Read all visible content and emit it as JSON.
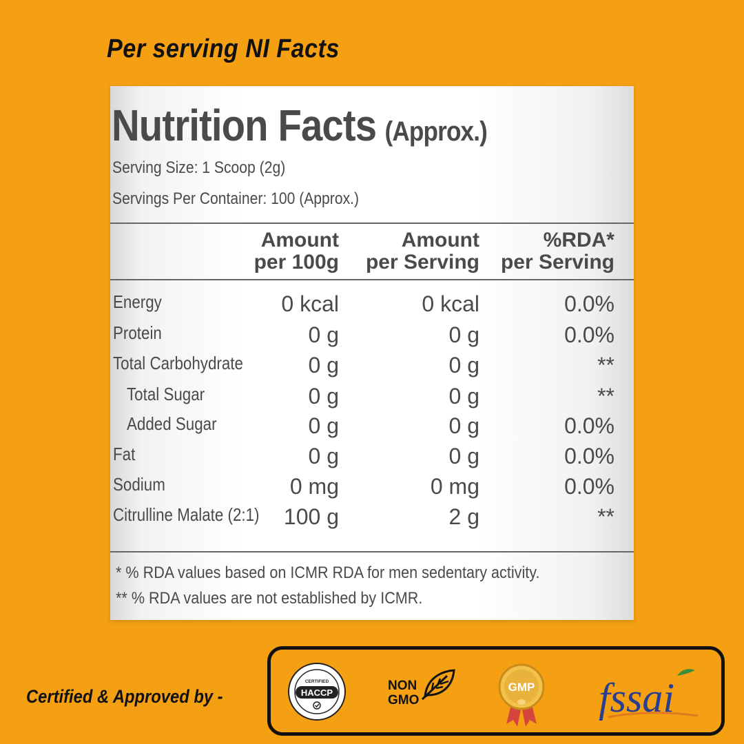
{
  "header": {
    "title": "Per serving NI Facts"
  },
  "label": {
    "title": "Nutrition Facts",
    "title_suffix": "(Approx.)",
    "serving_size": "Serving Size: 1 Scoop (2g)",
    "servings_per_container": "Servings Per Container: 100 (Approx.)",
    "columns": [
      {
        "line1": "Amount",
        "line2": "per 100g"
      },
      {
        "line1": "Amount",
        "line2": "per Serving"
      },
      {
        "line1": "%RDA*",
        "line2": "per Serving"
      }
    ],
    "rows": [
      {
        "name": "Energy",
        "per100g": "0 kcal",
        "perServing": "0 kcal",
        "rda": "0.0%"
      },
      {
        "name": "Protein",
        "per100g": "0 g",
        "perServing": "0 g",
        "rda": "0.0%"
      },
      {
        "name": "Total Carbohydrate",
        "per100g": "0 g",
        "perServing": "0 g",
        "rda": "**"
      },
      {
        "name": "Total Sugar",
        "per100g": "0 g",
        "perServing": "0 g",
        "rda": "**"
      },
      {
        "name": "Added Sugar",
        "per100g": "0 g",
        "perServing": "0 g",
        "rda": "0.0%"
      },
      {
        "name": "Fat",
        "per100g": "0 g",
        "perServing": "0 g",
        "rda": "0.0%"
      },
      {
        "name": "Sodium",
        "per100g": "0 mg",
        "perServing": "0 mg",
        "rda": "0.0%"
      },
      {
        "name": "Citrulline Malate (2:1)",
        "per100g": "100 g",
        "perServing": "2 g",
        "rda": "**"
      }
    ],
    "footnotes": [
      "* % RDA values based on ICMR RDA for men sedentary activity.",
      "** % RDA values are not established by ICMR."
    ]
  },
  "certifications": {
    "label": "Certified & Approved by -",
    "badges": [
      {
        "icon": "haccp-badge-icon",
        "text": "HACCP",
        "top_text": "CERTIFIED"
      },
      {
        "icon": "non-gmo-leaf-icon",
        "line1": "NON",
        "line2": "GMO"
      },
      {
        "icon": "gmp-medal-icon",
        "text": "GMP"
      },
      {
        "icon": "fssai-logo-icon",
        "text": "fssai"
      }
    ]
  },
  "colors": {
    "background": "#F4A012",
    "label_text": "#4a4a4a",
    "heading_text": "#111111",
    "fssai_blue": "#2a3d8f",
    "fssai_orange": "#e07a1f",
    "gmp_gold": "#e9b23a"
  }
}
